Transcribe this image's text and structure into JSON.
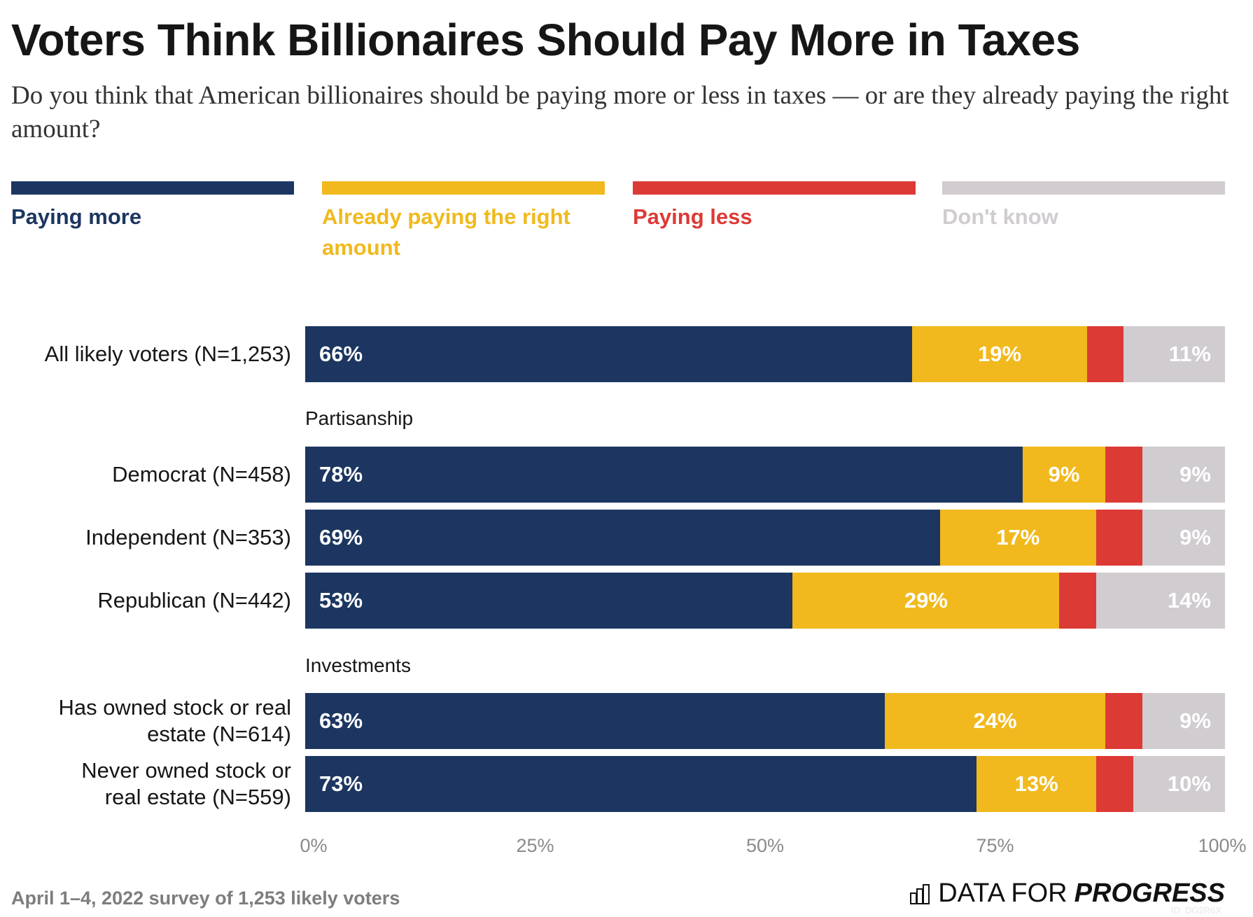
{
  "chart_data": {
    "type": "bar",
    "orientation": "horizontal",
    "stacked": true,
    "title": "Voters Think Billionaires Should Pay More in Taxes",
    "subtitle": "Do you think that American billionaires should be paying more or less in taxes — or are they already paying the right amount?",
    "legend_position": "top",
    "series": [
      {
        "name": "Paying more",
        "color": "#1c3661",
        "values": [
          66,
          78,
          69,
          53,
          63,
          73
        ]
      },
      {
        "name": "Already paying the right amount",
        "color": "#f1b91d",
        "values": [
          19,
          9,
          17,
          29,
          24,
          13
        ]
      },
      {
        "name": "Paying less",
        "color": "#dc3a35",
        "values": [
          4,
          4,
          5,
          4,
          4,
          4
        ]
      },
      {
        "name": "Don't know",
        "color": "#d0ccd0",
        "values": [
          11,
          9,
          9,
          14,
          9,
          10
        ]
      }
    ],
    "categories": [
      "All likely voters (N=1,253)",
      "Democrat (N=458)",
      "Independent (N=353)",
      "Republican (N=442)",
      "Has owned stock or real estate (N=614)",
      "Never owned stock or real estate (N=559)"
    ],
    "groups": [
      "Partisanship",
      "Investments"
    ],
    "labeled_series": [
      true,
      true,
      false,
      true
    ],
    "xlim": [
      0,
      100
    ],
    "xticks": [
      "0%",
      "25%",
      "50%",
      "75%",
      "100%"
    ],
    "grid": false
  },
  "footer": {
    "source": "April 1–4, 2022 survey of 1,253 likely voters",
    "logo_light": "DATA FOR",
    "logo_bold": "PROGRESS",
    "watermark": "ID: DG2R6X"
  }
}
